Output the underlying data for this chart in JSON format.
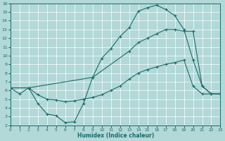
{
  "xlabel": "Humidex (Indice chaleur)",
  "xlim": [
    0,
    23
  ],
  "ylim": [
    2,
    16
  ],
  "xticks": [
    0,
    1,
    2,
    3,
    4,
    5,
    6,
    7,
    8,
    9,
    10,
    11,
    12,
    13,
    14,
    15,
    16,
    17,
    18,
    19,
    20,
    21,
    22,
    23
  ],
  "yticks": [
    2,
    3,
    4,
    5,
    6,
    7,
    8,
    9,
    10,
    11,
    12,
    13,
    14,
    15,
    16
  ],
  "background_color": "#b2d8d8",
  "grid_color": "#ffffff",
  "line_color": "#1a6b6b",
  "line1_x": [
    0,
    1,
    2,
    3,
    4,
    5,
    6,
    7,
    8,
    9,
    10,
    11,
    12,
    13,
    14,
    15,
    16,
    17,
    18,
    19,
    20,
    21,
    22,
    23
  ],
  "line1_y": [
    6.3,
    5.6,
    6.3,
    4.5,
    3.3,
    3.1,
    2.3,
    2.4,
    4.5,
    7.5,
    9.7,
    10.8,
    12.2,
    13.2,
    15.1,
    15.5,
    15.8,
    15.3,
    14.6,
    13.0,
    9.5,
    6.5,
    5.6,
    5.6
  ],
  "line1_markers": [
    0,
    1,
    2,
    3,
    4,
    5,
    6,
    7,
    8,
    9,
    10,
    11,
    12,
    13,
    14,
    15,
    16,
    17,
    18,
    19,
    20,
    21,
    22,
    23
  ],
  "line2_x": [
    0,
    2,
    9,
    13,
    14,
    15,
    16,
    17,
    18,
    19,
    20,
    21,
    22,
    23
  ],
  "line2_y": [
    6.3,
    6.3,
    7.5,
    10.5,
    11.5,
    12.0,
    12.5,
    13.0,
    13.0,
    12.8,
    12.8,
    6.5,
    5.6,
    5.6
  ],
  "line3_x": [
    0,
    2,
    3,
    4,
    5,
    6,
    7,
    8,
    9,
    10,
    11,
    12,
    13,
    14,
    15,
    16,
    17,
    18,
    19,
    20,
    21,
    22,
    23
  ],
  "line3_y": [
    6.3,
    6.3,
    5.5,
    5.0,
    4.9,
    4.7,
    4.8,
    5.0,
    5.2,
    5.5,
    6.0,
    6.5,
    7.3,
    8.0,
    8.4,
    8.7,
    9.0,
    9.2,
    9.5,
    6.5,
    5.6,
    5.6,
    5.6
  ]
}
